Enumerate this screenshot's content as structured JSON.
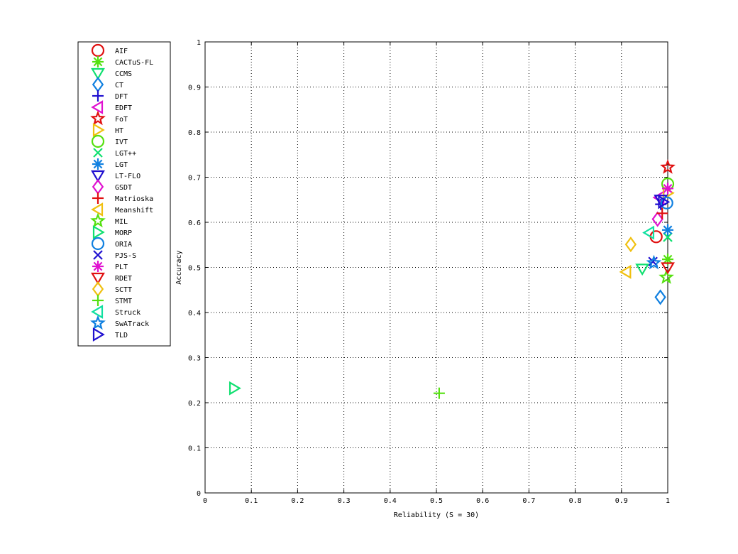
{
  "chart_data": {
    "type": "scatter",
    "title": "",
    "xlabel": "Reliability (S = 30)",
    "ylabel": "Accuracy",
    "xlim": [
      0,
      1
    ],
    "ylim": [
      0,
      1
    ],
    "xticks": [
      0,
      0.1,
      0.2,
      0.3,
      0.4,
      0.5,
      0.6,
      0.7,
      0.8,
      0.9,
      1
    ],
    "xtick_labels": [
      "0",
      "0.1",
      "0.2",
      "0.3",
      "0.4",
      "0.5",
      "0.6",
      "0.7",
      "0.8",
      "0.9",
      "1"
    ],
    "yticks": [
      0,
      0.1,
      0.2,
      0.3,
      0.4,
      0.5,
      0.6,
      0.7,
      0.8,
      0.9,
      1
    ],
    "ytick_labels": [
      "0",
      "0.1",
      "0.2",
      "0.3",
      "0.4",
      "0.5",
      "0.6",
      "0.7",
      "0.8",
      "0.9",
      "1"
    ],
    "grid": true,
    "grid_style": "dotted",
    "legend_position": "outside-left",
    "series": [
      {
        "name": "AIF",
        "marker": "circle",
        "color": "#e01010",
        "x": 0.975,
        "y": 0.568
      },
      {
        "name": "CACTuS-FL",
        "marker": "asterisk",
        "color": "#55e010",
        "x": 1.0,
        "y": 0.518
      },
      {
        "name": "CCMS",
        "marker": "triangle-down",
        "color": "#10e070",
        "x": 0.945,
        "y": 0.497
      },
      {
        "name": "CT",
        "marker": "diamond",
        "color": "#1080e0",
        "x": 0.984,
        "y": 0.434
      },
      {
        "name": "DFT",
        "marker": "plus",
        "color": "#2010d0",
        "x": 0.985,
        "y": 0.64
      },
      {
        "name": "EDFT",
        "marker": "triangle-left",
        "color": "#e010d0",
        "x": 0.982,
        "y": 0.655
      },
      {
        "name": "FoT",
        "marker": "pentagram",
        "color": "#e01010",
        "x": 1.0,
        "y": 0.722
      },
      {
        "name": "HT",
        "marker": "triangle-right",
        "color": "#f0c010",
        "x": 1.0,
        "y": 0.665
      },
      {
        "name": "IVT",
        "marker": "circle",
        "color": "#55e010",
        "x": 1.0,
        "y": 0.685
      },
      {
        "name": "LGT++",
        "marker": "x",
        "color": "#10e070",
        "x": 1.0,
        "y": 0.567
      },
      {
        "name": "LGT",
        "marker": "asterisk",
        "color": "#1080e0",
        "x": 1.0,
        "y": 0.583
      },
      {
        "name": "LT-FLO",
        "marker": "triangle-down",
        "color": "#2010d0",
        "x": 0.985,
        "y": 0.65
      },
      {
        "name": "GSDT",
        "marker": "diamond",
        "color": "#e010d0",
        "x": 0.978,
        "y": 0.607
      },
      {
        "name": "Matrioska",
        "marker": "plus",
        "color": "#e01010",
        "x": 0.988,
        "y": 0.62
      },
      {
        "name": "Meanshift",
        "marker": "triangle-left",
        "color": "#f0c010",
        "x": 0.91,
        "y": 0.49
      },
      {
        "name": "MIL",
        "marker": "pentagram",
        "color": "#55e010",
        "x": 0.997,
        "y": 0.478
      },
      {
        "name": "MORP",
        "marker": "triangle-right",
        "color": "#10e070",
        "x": 0.063,
        "y": 0.232
      },
      {
        "name": "ORIA",
        "marker": "circle",
        "color": "#1080e0",
        "x": 0.998,
        "y": 0.643
      },
      {
        "name": "PJS-S",
        "marker": "x",
        "color": "#2010d0",
        "x": 0.968,
        "y": 0.513
      },
      {
        "name": "PLT",
        "marker": "asterisk",
        "color": "#e010d0",
        "x": 1.0,
        "y": 0.675
      },
      {
        "name": "RDET",
        "marker": "triangle-down",
        "color": "#e01010",
        "x": 1.0,
        "y": 0.5
      },
      {
        "name": "SCTT",
        "marker": "diamond",
        "color": "#f0c010",
        "x": 0.92,
        "y": 0.551
      },
      {
        "name": "STMT",
        "marker": "plus",
        "color": "#55e010",
        "x": 0.506,
        "y": 0.221
      },
      {
        "name": "Struck",
        "marker": "triangle-left",
        "color": "#10e0a0",
        "x": 0.96,
        "y": 0.577
      },
      {
        "name": "SwATrack",
        "marker": "pentagram",
        "color": "#1080e0",
        "x": 0.97,
        "y": 0.51
      },
      {
        "name": "TLD",
        "marker": "triangle-right",
        "color": "#2010d0",
        "x": 0.99,
        "y": 0.645
      }
    ]
  }
}
